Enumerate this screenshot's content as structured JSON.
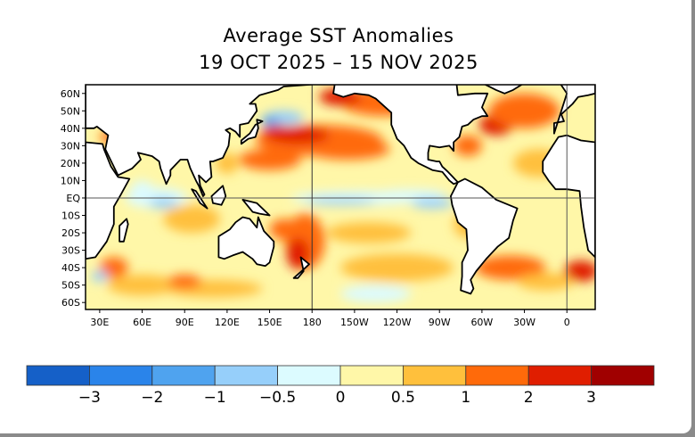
{
  "title": {
    "line1": "Average SST Anomalies",
    "line2": "19 OCT 2025 – 15 NOV 2025"
  },
  "map": {
    "lat_labels": [
      "60N",
      "50N",
      "40N",
      "30N",
      "20N",
      "10N",
      "EQ",
      "10S",
      "20S",
      "30S",
      "40S",
      "50S",
      "60S"
    ],
    "lat_values": [
      60,
      50,
      40,
      30,
      20,
      10,
      0,
      -10,
      -20,
      -30,
      -40,
      -50,
      -60
    ],
    "lon_labels": [
      "30E",
      "60E",
      "90E",
      "120E",
      "150E",
      "180",
      "150W",
      "120W",
      "90W",
      "60W",
      "30W",
      "0"
    ],
    "lon_values": [
      30,
      60,
      90,
      120,
      150,
      180,
      210,
      240,
      270,
      300,
      330,
      360
    ],
    "extent": {
      "lon": [
        20,
        380
      ],
      "lat": [
        -64,
        65
      ]
    }
  },
  "colorbar": {
    "labels": [
      "−3",
      "−2",
      "−1",
      "−0.5",
      "0",
      "0.5",
      "1",
      "2",
      "3"
    ],
    "colors": [
      "#1560c8",
      "#2a84ea",
      "#4fa3ef",
      "#96cffa",
      "#dcfbff",
      "#fff7a8",
      "#ffc03c",
      "#ff6a0a",
      "#e01e00",
      "#a00000"
    ]
  }
}
